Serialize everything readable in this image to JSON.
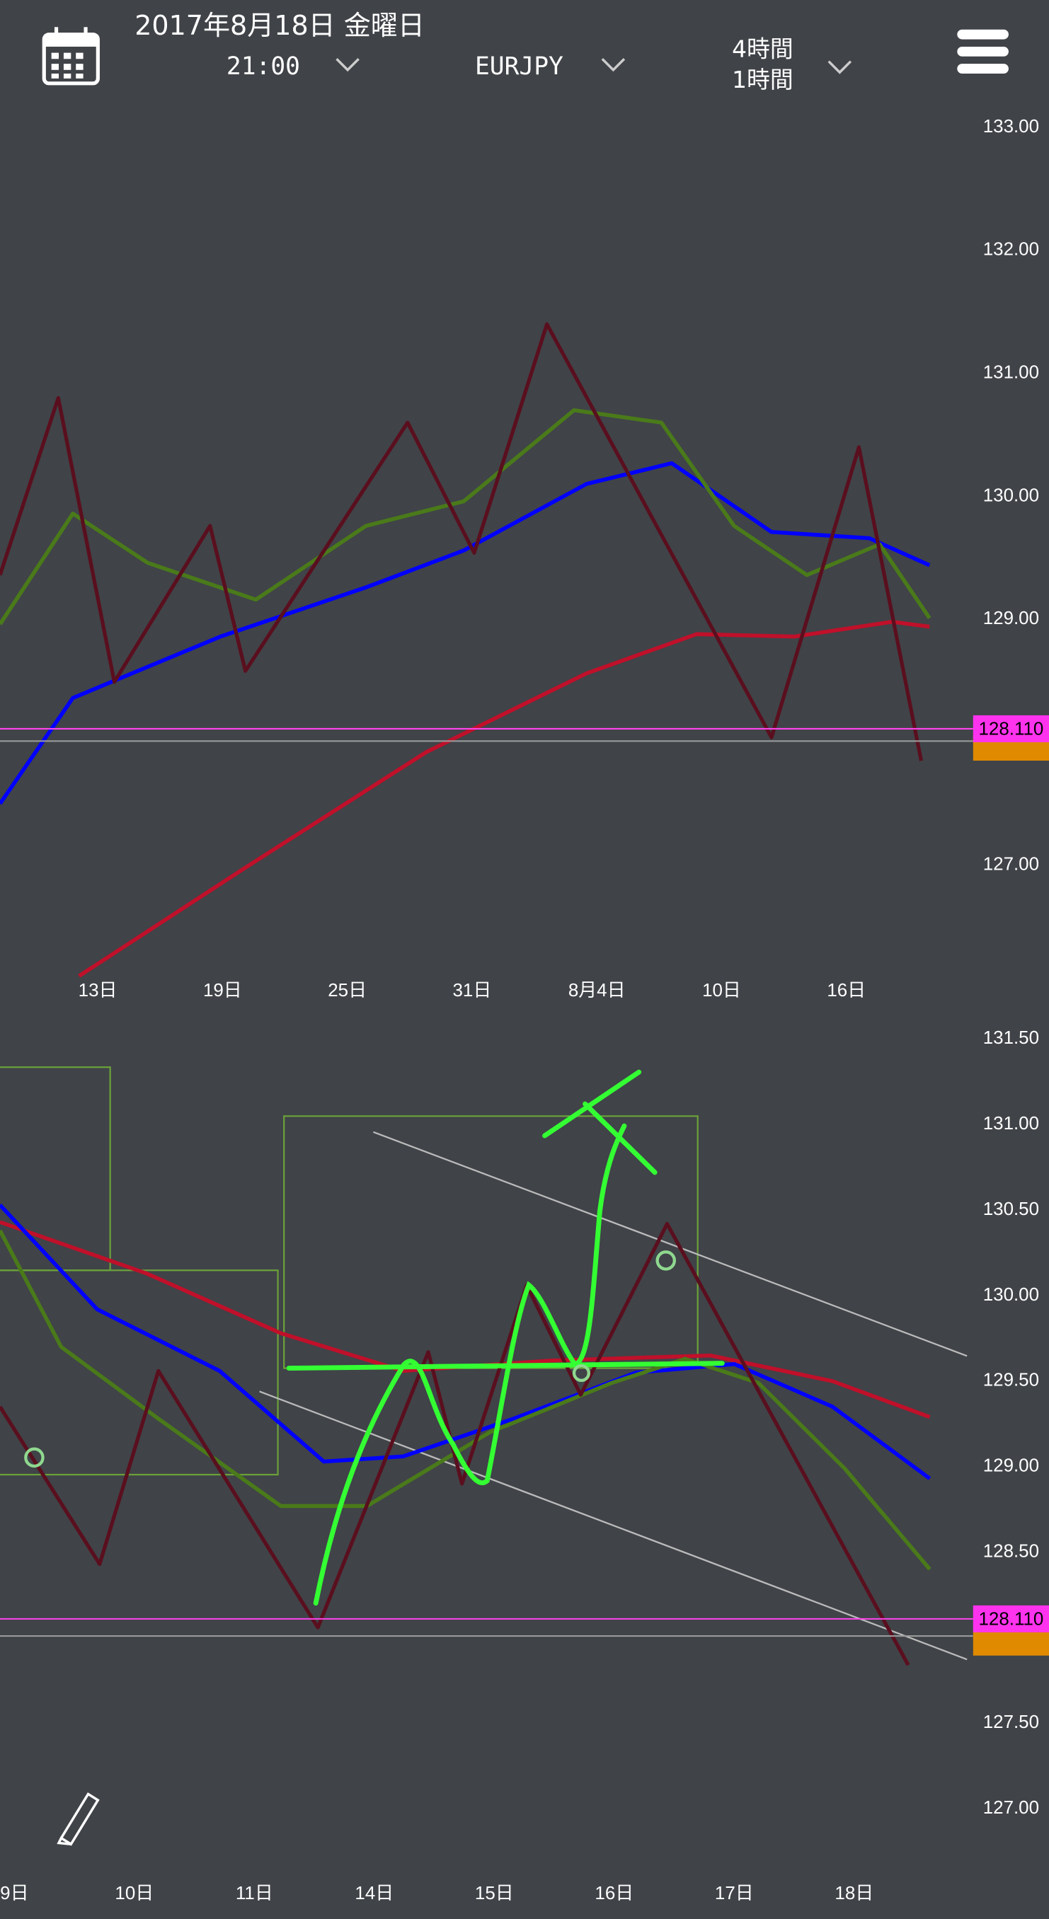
{
  "header": {
    "date": "2017年8月18日 金曜日",
    "time": "21:00",
    "symbol": "EURJPY",
    "timeframe_top": "4時間",
    "timeframe_bottom": "1時間"
  },
  "chart_data": [
    {
      "type": "line",
      "xlim": [
        -4.7,
        41.8
      ],
      "xticks": [
        {
          "value": 0,
          "label": "13日"
        },
        {
          "value": 6,
          "label": "19日"
        },
        {
          "value": 12,
          "label": "25日"
        },
        {
          "value": 18,
          "label": "31日"
        },
        {
          "value": 24,
          "label": "8月4日"
        },
        {
          "value": 30,
          "label": "10日"
        },
        {
          "value": 36,
          "label": "16日"
        }
      ],
      "ylim": [
        126.2,
        133.15
      ],
      "yticks": [
        {
          "value": 133,
          "label": "133.00"
        },
        {
          "value": 132,
          "label": "132.00"
        },
        {
          "value": 131,
          "label": "131.00"
        },
        {
          "value": 130,
          "label": "130.00"
        },
        {
          "value": 129,
          "label": "129.00"
        },
        {
          "value": 127,
          "label": "127.00"
        }
      ],
      "price_label": {
        "value": 128.11,
        "label": "128.110"
      },
      "last_price": 128.01,
      "series": [
        {
          "color": "#c0102a",
          "x": [
            -0.9,
            7,
            15.8,
            23.5,
            28.8,
            33.5,
            38.2,
            40
          ],
          "values": [
            126.1,
            126.97,
            127.92,
            128.56,
            128.88,
            128.86,
            128.98,
            128.94
          ]
        },
        {
          "color": "#0000ff",
          "x": [
            -4.7,
            -1.2,
            5.9,
            12.9,
            17.6,
            23.5,
            27.6,
            32.4,
            37.1,
            40
          ],
          "values": [
            127.5,
            128.36,
            128.86,
            129.26,
            129.56,
            130.1,
            130.27,
            129.71,
            129.66,
            129.44
          ]
        },
        {
          "color": "#4a7a1a",
          "x": [
            -4.7,
            -1.2,
            2.4,
            7.6,
            12.9,
            17.6,
            22.9,
            27.1,
            30.6,
            34.1,
            37.6,
            40
          ],
          "values": [
            128.96,
            129.86,
            129.46,
            129.16,
            129.76,
            129.96,
            130.7,
            130.6,
            129.76,
            129.36,
            129.61,
            129.01
          ]
        },
        {
          "color": "#5a0f1e",
          "x": [
            -4.7,
            -1.9,
            0.8,
            5.4,
            7.1,
            14.9,
            18.1,
            21.6,
            32.4,
            36.6,
            39.6
          ],
          "values": [
            129.36,
            130.8,
            128.49,
            129.76,
            128.58,
            130.6,
            129.54,
            131.4,
            128.04,
            130.4,
            127.85
          ]
        }
      ]
    },
    {
      "type": "line",
      "xlim": [
        -0.12,
        7.94
      ],
      "xticks": [
        {
          "value": 0,
          "label": "9日"
        },
        {
          "value": 1,
          "label": "10日"
        },
        {
          "value": 2,
          "label": "11日"
        },
        {
          "value": 3,
          "label": "14日"
        },
        {
          "value": 4,
          "label": "15日"
        },
        {
          "value": 5,
          "label": "16日"
        },
        {
          "value": 6,
          "label": "17日"
        },
        {
          "value": 7,
          "label": "18日"
        }
      ],
      "ylim": [
        126.8,
        131.6
      ],
      "yticks": [
        {
          "value": 131.5,
          "label": "131.50"
        },
        {
          "value": 131,
          "label": "131.00"
        },
        {
          "value": 130.5,
          "label": "130.50"
        },
        {
          "value": 130,
          "label": "130.00"
        },
        {
          "value": 129.5,
          "label": "129.50"
        },
        {
          "value": 129,
          "label": "129.00"
        },
        {
          "value": 128.5,
          "label": "128.50"
        },
        {
          "value": 127.5,
          "label": "127.50"
        },
        {
          "value": 127,
          "label": "127.00"
        }
      ],
      "price_label": {
        "value": 128.11,
        "label": "128.110"
      },
      "last_price": 128.01,
      "series": [
        {
          "color": "#c0102a",
          "x": [
            -0.12,
            1.1,
            2.22,
            3.24,
            4.47,
            5.8,
            6.82,
            7.63
          ],
          "values": [
            130.43,
            130.13,
            129.78,
            129.56,
            129.62,
            129.65,
            129.5,
            129.29
          ]
        },
        {
          "color": "#0000ff",
          "x": [
            -0.12,
            0.69,
            1.71,
            2.58,
            3.24,
            4.16,
            5.18,
            6,
            6.82,
            7.63
          ],
          "values": [
            130.53,
            129.92,
            129.56,
            129.03,
            129.06,
            129.28,
            129.55,
            129.6,
            129.35,
            128.93
          ]
        },
        {
          "color": "#4a7a1a",
          "x": [
            -0.12,
            0.39,
            1.2,
            2.22,
            2.94,
            3.96,
            4.98,
            5.59,
            6.2,
            6.92,
            7.63
          ],
          "values": [
            130.38,
            129.7,
            129.28,
            128.77,
            128.77,
            129.2,
            129.49,
            129.63,
            129.49,
            128.99,
            128.4
          ]
        },
        {
          "color": "#5a0f1e",
          "x": [
            -0.12,
            0.71,
            1.2,
            2.53,
            3.45,
            3.73,
            4.27,
            4.72,
            5.44,
            7.45
          ],
          "values": [
            129.35,
            128.43,
            129.56,
            128.06,
            129.67,
            128.9,
            130.06,
            129.42,
            130.42,
            127.84
          ]
        }
      ]
    }
  ]
}
